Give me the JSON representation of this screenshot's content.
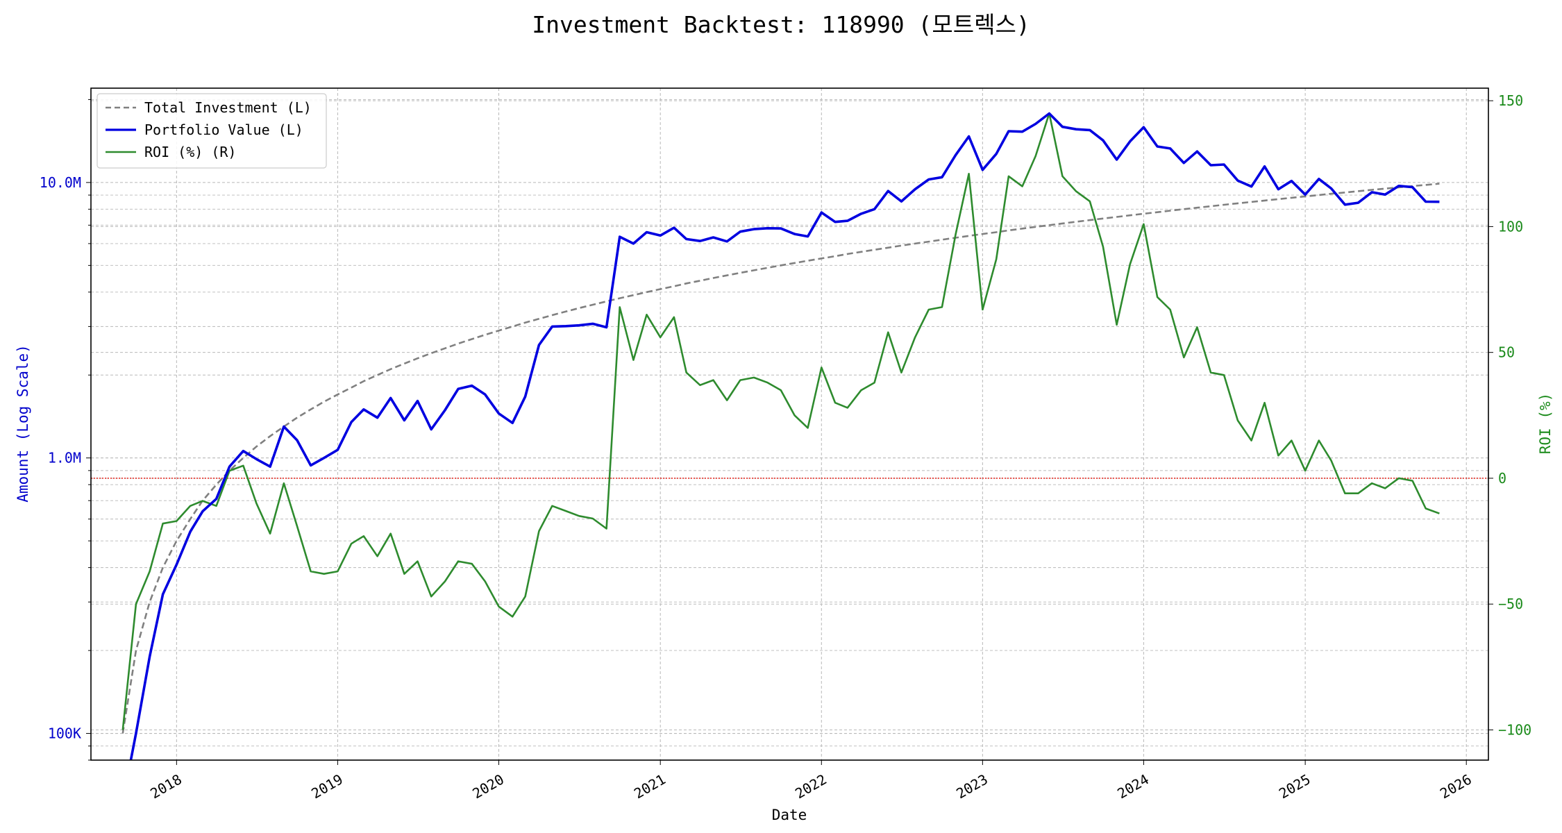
{
  "chart_data": {
    "type": "line",
    "title": "Investment Backtest: 118990 (모트렉스)",
    "xlabel": "Date",
    "ylabel_left": "Amount (Log Scale)",
    "ylabel_right": "ROI (%)",
    "left_scale": "log",
    "ylim_left": [
      80000,
      22000000
    ],
    "ylim_right": [
      -112,
      155
    ],
    "xlim": [
      "2017-06-21",
      "2026-02-20"
    ],
    "grid": true,
    "legend_position": "top-left",
    "x_ticks": [
      "2018",
      "2019",
      "2020",
      "2021",
      "2022",
      "2023",
      "2024",
      "2025",
      "2026"
    ],
    "y_left_ticks": [
      {
        "value": 100000,
        "label": "100K"
      },
      {
        "value": 1000000,
        "label": "1.0M"
      },
      {
        "value": 10000000,
        "label": "10.0M"
      }
    ],
    "y_right_ticks": [
      {
        "value": 150,
        "label": "150"
      },
      {
        "value": 100,
        "label": "100"
      },
      {
        "value": 50,
        "label": "50"
      },
      {
        "value": 0,
        "label": "0"
      },
      {
        "value": -50,
        "label": "−50"
      },
      {
        "value": -100,
        "label": "−100"
      }
    ],
    "zero_line": {
      "value": 0,
      "color": "#e8302a"
    },
    "dates": [
      "2017-09-01",
      "2017-10-01",
      "2017-11-01",
      "2017-12-01",
      "2018-01-01",
      "2018-02-01",
      "2018-03-01",
      "2018-04-01",
      "2018-05-01",
      "2018-06-01",
      "2018-07-01",
      "2018-08-01",
      "2018-09-01",
      "2018-10-01",
      "2018-11-01",
      "2018-12-01",
      "2019-01-01",
      "2019-02-01",
      "2019-03-01",
      "2019-04-01",
      "2019-05-01",
      "2019-06-01",
      "2019-07-01",
      "2019-08-01",
      "2019-09-01",
      "2019-10-01",
      "2019-11-01",
      "2019-12-01",
      "2020-01-01",
      "2020-02-01",
      "2020-03-01",
      "2020-04-01",
      "2020-05-01",
      "2020-06-01",
      "2020-07-01",
      "2020-08-01",
      "2020-09-01",
      "2020-10-01",
      "2020-11-01",
      "2020-12-01",
      "2021-01-01",
      "2021-02-01",
      "2021-03-01",
      "2021-04-01",
      "2021-05-01",
      "2021-06-01",
      "2021-07-01",
      "2021-08-01",
      "2021-09-01",
      "2021-10-01",
      "2021-11-01",
      "2021-12-01",
      "2022-01-01",
      "2022-02-01",
      "2022-03-01",
      "2022-04-01",
      "2022-05-01",
      "2022-06-01",
      "2022-07-01",
      "2022-08-01",
      "2022-09-01",
      "2022-10-01",
      "2022-11-01",
      "2022-12-01",
      "2023-01-01",
      "2023-02-01",
      "2023-03-01",
      "2023-04-01",
      "2023-05-01",
      "2023-06-01",
      "2023-07-01",
      "2023-08-01",
      "2023-09-01",
      "2023-10-01",
      "2023-11-01",
      "2023-12-01",
      "2024-01-01",
      "2024-02-01",
      "2024-03-01",
      "2024-04-01",
      "2024-05-01",
      "2024-06-01",
      "2024-07-01",
      "2024-08-01",
      "2024-09-01",
      "2024-10-01",
      "2024-11-01",
      "2024-12-01",
      "2025-01-01",
      "2025-02-01",
      "2025-03-01",
      "2025-04-01",
      "2025-05-01",
      "2025-06-01",
      "2025-07-01",
      "2025-08-01",
      "2025-09-01",
      "2025-10-01",
      "2025-11-01"
    ],
    "series": [
      {
        "name": "Total Investment (L)",
        "color": "#808080",
        "style": "dashed",
        "axis": "left",
        "values": [
          100000,
          200000,
          300000,
          400000,
          500000,
          600000,
          700000,
          800000,
          900000,
          1000000,
          1100000,
          1200000,
          1300000,
          1400000,
          1500000,
          1600000,
          1700000,
          1800000,
          1900000,
          2000000,
          2100000,
          2200000,
          2300000,
          2400000,
          2500000,
          2600000,
          2700000,
          2800000,
          2900000,
          3000000,
          3100000,
          3200000,
          3300000,
          3400000,
          3500000,
          3600000,
          3700000,
          3800000,
          3900000,
          4000000,
          4100000,
          4200000,
          4300000,
          4400000,
          4500000,
          4600000,
          4700000,
          4800000,
          4900000,
          5000000,
          5100000,
          5200000,
          5300000,
          5400000,
          5500000,
          5600000,
          5700000,
          5800000,
          5900000,
          6000000,
          6100000,
          6200000,
          6300000,
          6400000,
          6500000,
          6600000,
          6700000,
          6800000,
          6900000,
          7000000,
          7100000,
          7200000,
          7300000,
          7400000,
          7500000,
          7600000,
          7700000,
          7800000,
          7900000,
          8000000,
          8100000,
          8200000,
          8300000,
          8400000,
          8500000,
          8600000,
          8700000,
          8800000,
          8900000,
          9000000,
          9100000,
          9200000,
          9300000,
          9400000,
          9500000,
          9600000,
          9700000,
          9800000,
          9900000
        ]
      },
      {
        "name": "Portfolio Value (L)",
        "color": "#0000e0",
        "style": "solid",
        "axis": "left",
        "values": [
          0,
          100000,
          190000,
          320000,
          410000,
          540000,
          640000,
          710000,
          930000,
          1060000,
          990000,
          930000,
          1300000,
          1160000,
          940000,
          1000000,
          1070000,
          1350000,
          1500000,
          1400000,
          1650000,
          1370000,
          1610000,
          1270000,
          1490000,
          1780000,
          1830000,
          1700000,
          1450000,
          1340000,
          1670000,
          2570000,
          3000000,
          3010000,
          3030000,
          3070000,
          2980000,
          6350000,
          6000000,
          6600000,
          6420000,
          6850000,
          6230000,
          6130000,
          6320000,
          6110000,
          6630000,
          6770000,
          6820000,
          6810000,
          6500000,
          6370000,
          7780000,
          7190000,
          7260000,
          7700000,
          8000000,
          9310000,
          8540000,
          9450000,
          10260000,
          10450000,
          12580000,
          14700000,
          11110000,
          12700000,
          15350000,
          15290000,
          16320000,
          17800000,
          15920000,
          15600000,
          15500000,
          14220000,
          12110000,
          14090000,
          15870000,
          13510000,
          13290000,
          11780000,
          12960000,
          11550000,
          11620000,
          10160000,
          9670000,
          11430000,
          9450000,
          10130000,
          9040000,
          10300000,
          9510000,
          8310000,
          8440000,
          9220000,
          9040000,
          9720000,
          9620000,
          8520000,
          8510000
        ]
      },
      {
        "name": "ROI (%) (R)",
        "color": "#2e8b2e",
        "style": "solid",
        "axis": "right",
        "values": [
          -100,
          -50,
          -37,
          -18,
          -17,
          -11,
          -9,
          -11,
          3,
          5,
          -10,
          -22,
          -2,
          -19,
          -37,
          -38,
          -37,
          -26,
          -23,
          -31,
          -22,
          -38,
          -33,
          -47,
          -41,
          -33,
          -34,
          -41,
          -51,
          -55,
          -47,
          -21,
          -11,
          -13,
          -15,
          -16,
          -20,
          68,
          47,
          65,
          56,
          64,
          42,
          37,
          39,
          31,
          39,
          40,
          38,
          35,
          25,
          20,
          44,
          30,
          28,
          35,
          38,
          58,
          42,
          56,
          67,
          68,
          97,
          121,
          67,
          87,
          120,
          116,
          128,
          145,
          120,
          114,
          110,
          92,
          61,
          85,
          101,
          72,
          67,
          48,
          60,
          42,
          41,
          23,
          15,
          30,
          9,
          15,
          3,
          15,
          7,
          -6,
          -6,
          -2,
          -4,
          0,
          -1,
          -12,
          -14
        ]
      }
    ]
  }
}
